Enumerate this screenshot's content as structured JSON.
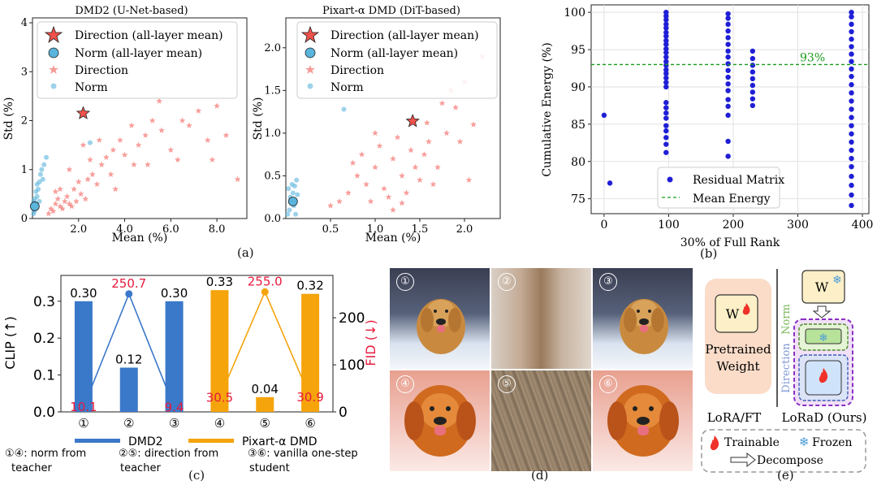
{
  "chart_data": [
    {
      "id": "a1",
      "type": "scatter",
      "title": "DMD2 (U-Net-based)",
      "xlabel": "Mean (%)",
      "ylabel": "Std (%)",
      "xlim": [
        0,
        9.3
      ],
      "ylim": [
        0,
        4.1
      ],
      "xticks": [
        "2.0",
        "4.0",
        "6.0",
        "8.0"
      ],
      "yticks": [
        "0",
        "1",
        "2",
        "3",
        "4"
      ],
      "legend_position": "top-right",
      "legend": [
        "Direction (all-layer mean)",
        "Norm (all-layer mean)",
        "Direction",
        "Norm"
      ],
      "series": [
        {
          "name": "Direction (all-layer mean)",
          "points": [
            [
              2.2,
              2.15
            ]
          ]
        },
        {
          "name": "Norm (all-layer mean)",
          "points": [
            [
              0.1,
              0.25
            ]
          ]
        },
        {
          "name": "Direction",
          "points": [
            [
              0.8,
              0.2
            ],
            [
              1.0,
              0.3
            ],
            [
              1.2,
              0.25
            ],
            [
              1.4,
              0.35
            ],
            [
              1.6,
              0.3
            ],
            [
              0.9,
              0.15
            ],
            [
              1.1,
              0.4
            ],
            [
              1.3,
              0.2
            ],
            [
              1.5,
              0.45
            ],
            [
              1.7,
              0.25
            ],
            [
              1.9,
              0.35
            ],
            [
              2.1,
              0.5
            ],
            [
              2.3,
              0.4
            ],
            [
              1.0,
              0.55
            ],
            [
              1.8,
              0.6
            ],
            [
              2.0,
              0.75
            ],
            [
              2.4,
              0.8
            ],
            [
              2.6,
              0.9
            ],
            [
              2.8,
              0.7
            ],
            [
              3.0,
              1.1
            ],
            [
              3.2,
              1.25
            ],
            [
              3.5,
              1.4
            ],
            [
              3.8,
              1.6
            ],
            [
              4.0,
              1.3
            ],
            [
              4.3,
              1.9
            ],
            [
              4.6,
              1.5
            ],
            [
              4.9,
              1.7
            ],
            [
              5.2,
              2.0
            ],
            [
              5.6,
              1.8
            ],
            [
              6.0,
              1.4
            ],
            [
              6.3,
              1.2
            ],
            [
              6.8,
              1.9
            ],
            [
              7.2,
              2.2
            ],
            [
              7.6,
              1.6
            ],
            [
              8.0,
              2.3
            ],
            [
              8.4,
              1.7
            ],
            [
              8.9,
              0.8
            ],
            [
              3.4,
              0.9
            ],
            [
              2.2,
              1.5
            ],
            [
              1.6,
              1.0
            ],
            [
              2.5,
              1.2
            ],
            [
              5.0,
              1.1
            ],
            [
              6.5,
              2.0
            ],
            [
              4.4,
              1.1
            ],
            [
              3.6,
              0.6
            ],
            [
              2.9,
              1.6
            ],
            [
              7.8,
              1.2
            ],
            [
              5.5,
              2.4
            ],
            [
              0.7,
              0.1
            ],
            [
              1.2,
              0.6
            ]
          ]
        },
        {
          "name": "Norm",
          "points": [
            [
              0.05,
              0.1
            ],
            [
              0.1,
              0.2
            ],
            [
              0.15,
              0.3
            ],
            [
              0.2,
              0.45
            ],
            [
              0.25,
              0.6
            ],
            [
              0.3,
              0.75
            ],
            [
              0.35,
              0.9
            ],
            [
              0.4,
              1.0
            ],
            [
              0.5,
              1.1
            ],
            [
              0.6,
              1.25
            ],
            [
              0.1,
              0.4
            ],
            [
              0.2,
              0.7
            ],
            [
              2.5,
              1.55
            ],
            [
              0.15,
              0.55
            ],
            [
              0.3,
              0.35
            ],
            [
              0.08,
              0.15
            ],
            [
              0.45,
              0.8
            ],
            [
              0.05,
              0.35
            ]
          ]
        }
      ]
    },
    {
      "id": "a2",
      "type": "scatter",
      "title": "Pixart-α DMD (DiT-based)",
      "xlabel": "Mean (%)",
      "ylabel": "Std (%)",
      "xlim": [
        0,
        2.4
      ],
      "ylim": [
        0,
        2.35
      ],
      "xticks": [
        "0.5",
        "1.0",
        "1.5",
        "2.0"
      ],
      "yticks": [
        "0.0",
        "0.5",
        "1.0",
        "1.5",
        "2.0"
      ],
      "legend_position": "top-right",
      "legend": [
        "Direction (all-layer mean)",
        "Norm (all-layer mean)",
        "Direction",
        "Norm"
      ],
      "series": [
        {
          "name": "Direction (all-layer mean)",
          "points": [
            [
              1.42,
              1.14
            ]
          ]
        },
        {
          "name": "Norm (all-layer mean)",
          "points": [
            [
              0.08,
              0.2
            ]
          ]
        },
        {
          "name": "Direction",
          "points": [
            [
              0.7,
              0.3
            ],
            [
              0.8,
              0.5
            ],
            [
              0.9,
              0.4
            ],
            [
              1.0,
              0.6
            ],
            [
              1.1,
              0.35
            ],
            [
              1.2,
              0.7
            ],
            [
              1.3,
              0.5
            ],
            [
              1.4,
              0.8
            ],
            [
              1.5,
              0.45
            ],
            [
              1.6,
              0.9
            ],
            [
              1.7,
              0.6
            ],
            [
              1.8,
              1.0
            ],
            [
              1.9,
              1.3
            ],
            [
              2.0,
              1.6
            ],
            [
              1.75,
              1.35
            ],
            [
              0.95,
              0.2
            ],
            [
              1.05,
              0.85
            ],
            [
              1.15,
              0.25
            ],
            [
              1.25,
              0.95
            ],
            [
              1.35,
              0.3
            ],
            [
              1.45,
              0.6
            ],
            [
              1.55,
              0.75
            ],
            [
              1.65,
              0.4
            ],
            [
              0.6,
              0.2
            ],
            [
              0.5,
              0.15
            ],
            [
              1.95,
              0.9
            ],
            [
              2.1,
              1.1
            ],
            [
              2.2,
              1.9
            ],
            [
              1.85,
              1.5
            ],
            [
              0.85,
              0.75
            ],
            [
              1.0,
              1.0
            ],
            [
              1.2,
              0.1
            ],
            [
              1.58,
              1.12
            ],
            [
              2.05,
              0.45
            ],
            [
              0.75,
              0.65
            ],
            [
              1.3,
              0.18
            ]
          ]
        },
        {
          "name": "Norm",
          "points": [
            [
              0.02,
              0.05
            ],
            [
              0.04,
              0.1
            ],
            [
              0.06,
              0.2
            ],
            [
              0.08,
              0.3
            ],
            [
              0.1,
              0.38
            ],
            [
              0.12,
              0.45
            ],
            [
              0.05,
              0.25
            ],
            [
              0.09,
              0.15
            ],
            [
              0.03,
              0.35
            ],
            [
              0.11,
              0.05
            ],
            [
              0.65,
              1.28
            ],
            [
              0.07,
              0.4
            ],
            [
              0.13,
              0.28
            ]
          ]
        }
      ]
    },
    {
      "id": "b",
      "type": "scatter",
      "xlabel": "30% of Full Rank",
      "ylabel": "Cumulative Energy (%)",
      "xlim": [
        -20,
        410
      ],
      "ylim": [
        73,
        101
      ],
      "xticks": [
        "0",
        "100",
        "200",
        "300",
        "400"
      ],
      "yticks": [
        "75",
        "80",
        "85",
        "90",
        "95",
        "100"
      ],
      "grid": true,
      "legend_position": "bottom-center",
      "legend": [
        "Residual Matrix",
        "Mean Energy"
      ],
      "mean_energy": 93,
      "mean_energy_label": "93%",
      "columns": [
        {
          "x": 0,
          "ys": [
            86.2
          ]
        },
        {
          "x": 9,
          "ys": [
            77.1
          ]
        },
        {
          "x": 96,
          "ys": [
            81.2,
            82.3,
            83.2,
            84.1,
            84.8,
            85.8,
            86.5,
            87.2,
            87.9,
            90.0,
            90.6,
            91.2,
            91.8,
            92.3,
            92.9,
            93.4,
            94.0,
            94.6,
            95.1,
            95.7,
            96.2,
            96.8,
            97.3,
            97.9,
            98.4,
            99.0,
            99.5,
            100.0
          ]
        },
        {
          "x": 192,
          "ys": [
            80.7,
            82.7,
            86.2,
            87.4,
            88.3,
            89.5,
            90.4,
            91.3,
            92.2,
            93.1,
            94.0,
            94.8,
            95.7,
            96.6,
            97.5,
            98.4,
            99.2,
            99.8
          ]
        },
        {
          "x": 230,
          "ys": [
            87.5,
            88.4,
            89.3,
            90.2,
            91.1,
            92.0,
            92.9,
            93.8,
            94.8
          ]
        },
        {
          "x": 383,
          "ys": [
            74.1,
            75.5,
            76.8,
            78.0,
            79.3,
            80.4,
            81.5,
            82.6,
            83.7,
            84.8,
            85.9,
            87.0,
            88.1,
            89.2,
            90.3,
            91.4,
            92.4,
            93.4,
            94.4,
            95.4,
            96.4,
            97.4,
            98.4,
            99.4,
            100.0
          ]
        }
      ]
    },
    {
      "id": "c",
      "type": "bar",
      "categories": [
        "①",
        "②",
        "③",
        "④",
        "⑤",
        "⑥"
      ],
      "ylabel": "CLIP (↑)",
      "ylabel_right": "FID (↓)",
      "ylim": [
        0,
        0.37
      ],
      "ylim_right": [
        0,
        290
      ],
      "yticks": [
        "0.0",
        "0.1",
        "0.2",
        "0.3"
      ],
      "yticks_right": [
        "0",
        "100",
        "200"
      ],
      "series": [
        {
          "name": "DMD2",
          "color": "#3a78c9",
          "indices": [
            0,
            1,
            2
          ],
          "clip": [
            0.3,
            0.12,
            0.3
          ],
          "clip_labels": [
            "0.30",
            "0.12",
            "0.30"
          ],
          "fid": [
            10.1,
            250.7,
            9.4
          ],
          "fid_labels": [
            "10.1",
            "250.7",
            "9.4"
          ]
        },
        {
          "name": "Pixart-α DMD",
          "color": "#f5a40c",
          "indices": [
            3,
            4,
            5
          ],
          "clip": [
            0.33,
            0.04,
            0.32
          ],
          "clip_labels": [
            "0.33",
            "0.04",
            "0.32"
          ],
          "fid": [
            30.5,
            255.0,
            30.9
          ],
          "fid_labels": [
            "30.5",
            "255.0",
            "30.9"
          ]
        }
      ]
    }
  ],
  "labels": {
    "a": "(a)",
    "b": "(b)",
    "c": "(c)",
    "d": "(d)",
    "e": "(e)"
  },
  "notes_c": {
    "n1": "①④: norm from",
    "n1b": "teacher",
    "n2": "②⑤: direction from",
    "n2b": "teacher",
    "n3": "③⑥: vanilla one-step",
    "n3b": "student"
  },
  "images": [
    "①",
    "②",
    "③",
    "④",
    "⑤",
    "⑥"
  ],
  "diagram": {
    "w": "W",
    "pretrained": "Pretrained",
    "weight": "Weight",
    "norm": "Norm",
    "direction": "Direction",
    "lora_ft": "LoRA/FT",
    "lorad": "LoRaD (Ours)",
    "trainable": "Trainable",
    "frozen": "Frozen",
    "decompose": "Decompose"
  },
  "colors": {
    "direction": "#f0514a",
    "norm": "#5ab4dc",
    "residual": "#1f1fd6",
    "mean_line": "#1a9a1a",
    "fid": "#e8193c",
    "dmd2": "#3a78c9",
    "pixart": "#f5a40c"
  }
}
